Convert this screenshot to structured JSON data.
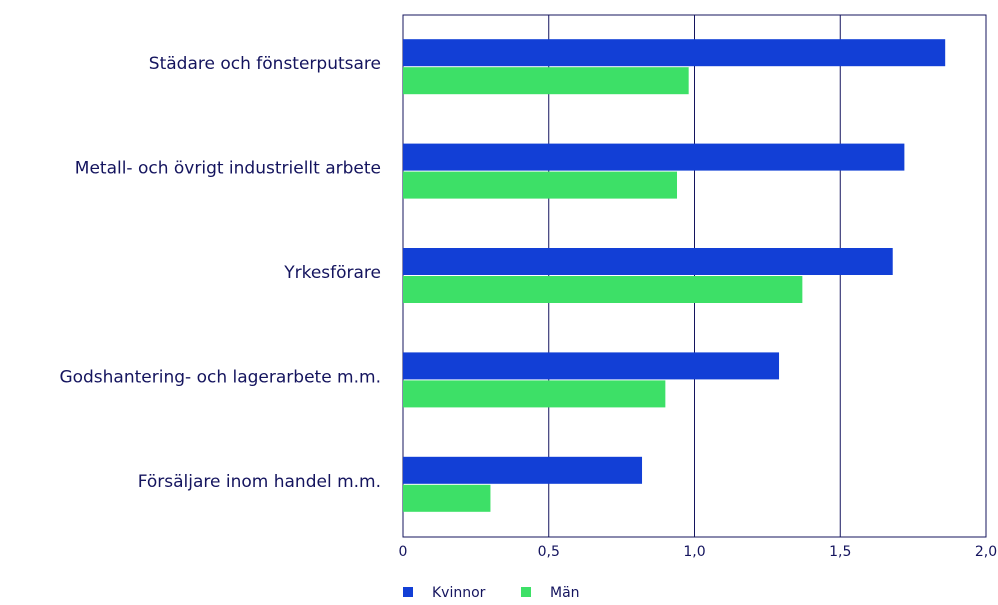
{
  "chart_data": {
    "type": "hbar",
    "categories": [
      "Städare och fönsterputsare",
      "Metall- och övrigt industriellt arbete",
      "Yrkesförare",
      "Godshantering- och lagerarbete m.m.",
      "Försäljare inom handel m.m."
    ],
    "series": [
      {
        "name": "Kvinnor",
        "color": "#123fd6",
        "values": [
          1.86,
          1.72,
          1.68,
          1.29,
          0.82
        ]
      },
      {
        "name": "Män",
        "color": "#3de067",
        "values": [
          0.98,
          0.94,
          1.37,
          0.9,
          0.3
        ]
      }
    ],
    "xlim": [
      0,
      2.0
    ],
    "xticks": [
      0,
      {
        "value": 0.5,
        "label": "0,5"
      },
      {
        "value": 1.0,
        "label": "1,0"
      },
      {
        "value": 1.5,
        "label": "1,5"
      },
      {
        "value": 2.0,
        "label": "2,0"
      }
    ],
    "grid": true,
    "legend": "bottom"
  }
}
